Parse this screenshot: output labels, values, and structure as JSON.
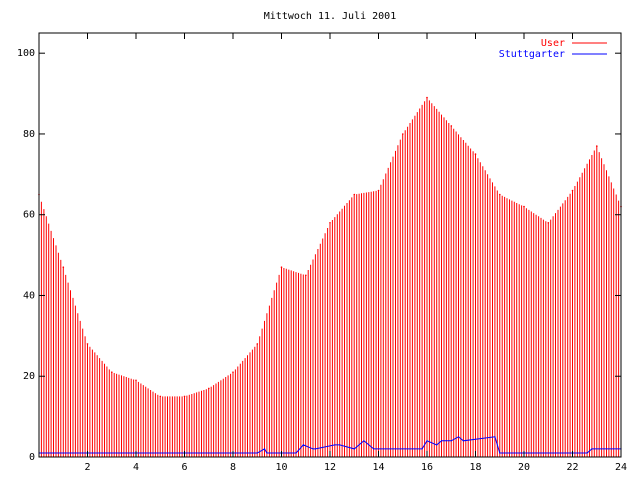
{
  "chart_data": {
    "type": "bar",
    "title": "Mittwoch 11. Juli 2001",
    "xlabel": "",
    "ylabel": "",
    "xlim": [
      0,
      24
    ],
    "ylim": [
      0,
      105
    ],
    "xticks": [
      "2",
      "4",
      "6",
      "8",
      "10",
      "12",
      "14",
      "16",
      "18",
      "20",
      "22",
      "24"
    ],
    "yticks": [
      "0",
      "20",
      "40",
      "60",
      "80",
      "100"
    ],
    "legend": "top-right",
    "grid": false,
    "series": [
      {
        "name": "User",
        "color": "#ff0000",
        "style": "impulses",
        "x": [
          0,
          1,
          2,
          3,
          4,
          5,
          6,
          7,
          8,
          9,
          10,
          11,
          12,
          13,
          14,
          15,
          16,
          17,
          18,
          19,
          20,
          21,
          22,
          23,
          24
        ],
        "values": [
          65,
          47,
          28,
          21,
          19,
          15,
          15,
          17,
          21,
          28,
          47,
          45,
          58,
          65,
          66,
          80,
          89,
          82,
          75,
          65,
          62,
          58,
          66,
          77,
          62
        ]
      },
      {
        "name": "Stuttgarter",
        "color": "#0000ff",
        "style": "line",
        "x": [
          0,
          9,
          9.3,
          9.4,
          10.6,
          10.9,
          11.3,
          11.4,
          12.2,
          12.4,
          13.0,
          13.4,
          13.8,
          15.8,
          16.0,
          16.4,
          16.6,
          17.0,
          17.3,
          17.5,
          18.8,
          19.0,
          22.6,
          22.8,
          24
        ],
        "values": [
          1,
          1,
          2,
          1,
          1,
          3,
          2,
          2,
          3,
          3,
          2,
          4,
          2,
          2,
          4,
          3,
          4,
          4,
          5,
          4,
          5,
          1,
          1,
          2,
          2
        ]
      }
    ]
  }
}
